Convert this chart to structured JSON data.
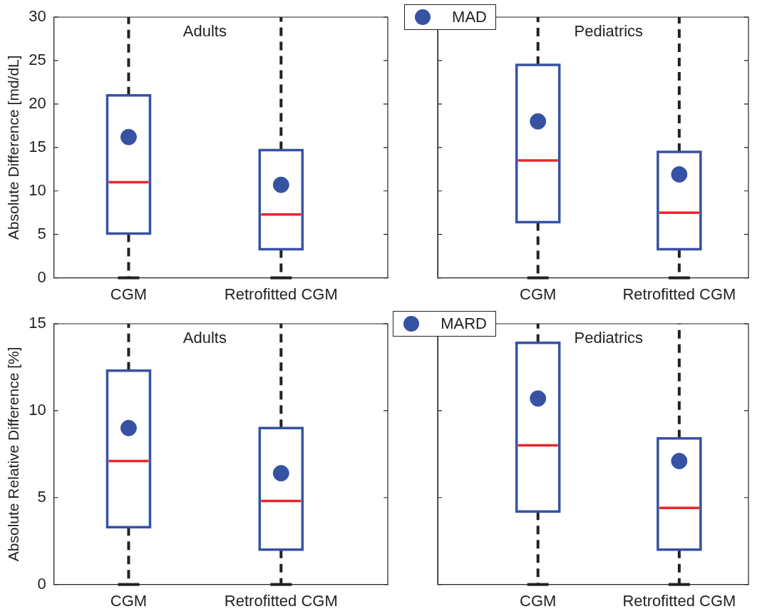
{
  "chart_data": [
    {
      "type": "box",
      "ylabel": "Absolute Difference [md/dL]",
      "categories": [
        "CGM",
        "Retrofitted CGM"
      ],
      "ylim": [
        0,
        30
      ],
      "yticks": [
        0,
        5,
        10,
        15,
        20,
        25,
        30
      ],
      "legend": "top right",
      "marker": "circle",
      "line_style": "dashed",
      "annotations": [
        "Adults"
      ],
      "series": [
        {
          "name": "MAD",
          "color": "#3652a3",
          "boxes": [
            {
              "low": 0,
              "q1": 5.1,
              "median": 11,
              "q3": 21,
              "high": 30,
              "mean": 16.2
            },
            {
              "low": 0,
              "q1": 3.3,
              "median": 7.3,
              "q3": 14.7,
              "high": 30,
              "mean": 10.7
            }
          ]
        }
      ]
    },
    {
      "type": "box",
      "categories": [
        "CGM",
        "Retrofitted CGM"
      ],
      "ylim": [
        0,
        30
      ],
      "yticks": [
        0,
        5,
        10,
        15,
        20,
        25,
        30
      ],
      "tick_labels": "x",
      "marker": "circle",
      "line_style": "dashed",
      "annotations": [
        "Pediatrics"
      ],
      "series": [
        {
          "color": "#3652a3",
          "boxes": [
            {
              "low": 0,
              "q1": 6.4,
              "median": 13.5,
              "q3": 24.5,
              "high": 30,
              "mean": 18
            },
            {
              "low": 0,
              "q1": 3.3,
              "median": 7.5,
              "q3": 14.5,
              "high": 30,
              "mean": 11.9
            }
          ]
        }
      ]
    },
    {
      "type": "box",
      "ylabel": "Absolute Relative Difference [%]",
      "categories": [
        "CGM",
        "Retrofitted CGM"
      ],
      "ylim": [
        0,
        15
      ],
      "yticks": [
        0,
        5,
        10,
        15
      ],
      "legend": "top right",
      "marker": "circle",
      "line_style": "dashed",
      "annotations": [
        "Adults"
      ],
      "series": [
        {
          "name": "MARD",
          "color": "#3652a3",
          "boxes": [
            {
              "low": 0,
              "q1": 3.3,
              "median": 7.1,
              "q3": 12.3,
              "high": 15,
              "mean": 9
            },
            {
              "low": 0,
              "q1": 2,
              "median": 4.8,
              "q3": 9,
              "high": 15,
              "mean": 6.4
            }
          ]
        }
      ]
    },
    {
      "type": "box",
      "categories": [
        "CGM",
        "Retrofitted CGM"
      ],
      "ylim": [
        0,
        15
      ],
      "yticks": [
        0,
        5,
        10,
        15
      ],
      "tick_labels": "x",
      "marker": "circle",
      "line_style": "dashed",
      "annotations": [
        "Pediatrics"
      ],
      "series": [
        {
          "color": "#3652a3",
          "boxes": [
            {
              "low": 0,
              "q1": 4.2,
              "median": 8,
              "q3": 13.9,
              "high": 15,
              "mean": 10.7
            },
            {
              "low": 0,
              "q1": 2,
              "median": 4.4,
              "q3": 8.4,
              "high": 15,
              "mean": 7.1
            }
          ]
        }
      ]
    }
  ]
}
